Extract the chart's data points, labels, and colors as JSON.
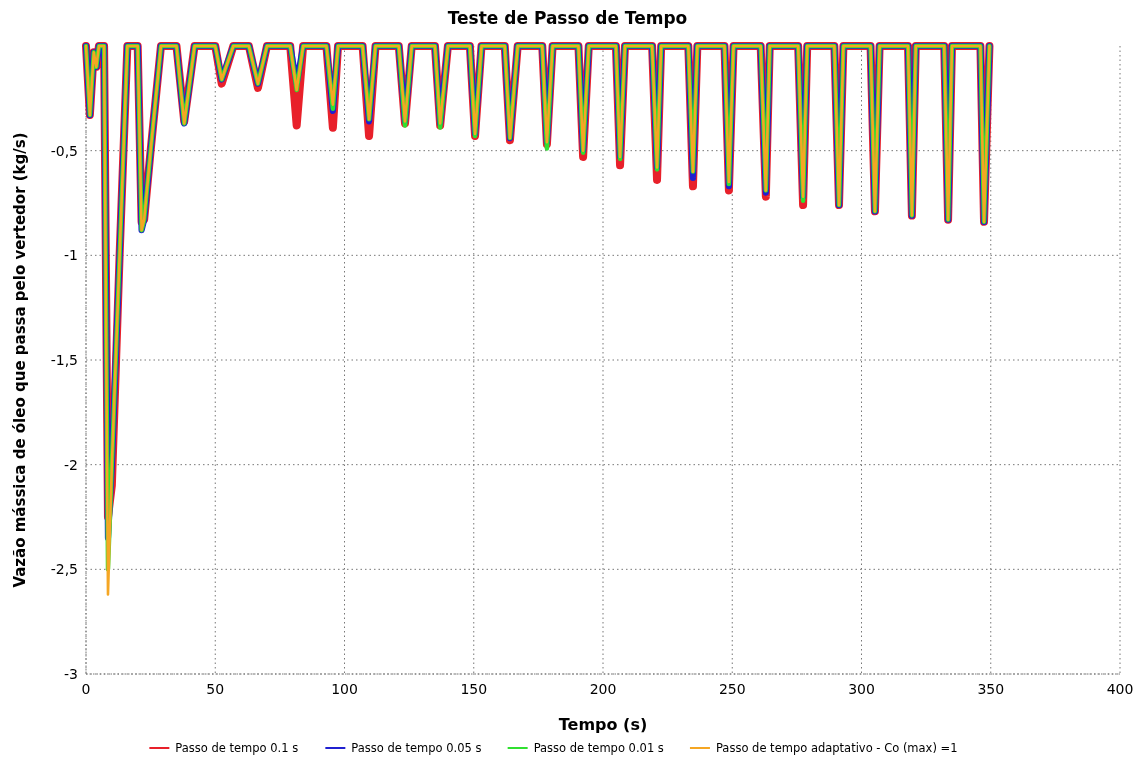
{
  "chart_data": {
    "type": "line",
    "title": "Teste de Passo de Tempo",
    "xlabel": "Tempo (s)",
    "ylabel": "Vazão mássica de óleo que passa pelo vertedor (kg/s)",
    "x": [
      0,
      1.5,
      3,
      4,
      5,
      7,
      8.5,
      10,
      13,
      16,
      20,
      21.5,
      22.5,
      25,
      29,
      35,
      38,
      42,
      50,
      52.5,
      57,
      63,
      66.5,
      70,
      79,
      81.5,
      84,
      93,
      95.5,
      97.5,
      107,
      109.5,
      112,
      121,
      123.4,
      126,
      135,
      137,
      140,
      148.5,
      150.5,
      153,
      162,
      164,
      167,
      176.5,
      178.3,
      180.5,
      190.5,
      192.3,
      194.5,
      205,
      206.6,
      208.5,
      219,
      220.9,
      222.5,
      233,
      234.8,
      236.5,
      247,
      248.7,
      250.5,
      261,
      263,
      264.5,
      275.5,
      277.4,
      279,
      289.5,
      291.3,
      293,
      303.5,
      305.2,
      307,
      318,
      319.5,
      321,
      332,
      333.5,
      335,
      346,
      347.4,
      349.5
    ],
    "series": [
      {
        "name": "Passo de tempo 0.1 s",
        "color": "#e8202a",
        "values": [
          0,
          -0.33,
          -0.03,
          -0.1,
          0,
          0,
          -2.25,
          -2.1,
          -1.0,
          0,
          0,
          -0.84,
          -0.83,
          -0.5,
          0,
          0,
          -0.36,
          0,
          0,
          -0.18,
          0,
          0,
          -0.2,
          0,
          0,
          -0.38,
          0,
          0,
          -0.39,
          0,
          0,
          -0.43,
          0,
          0,
          -0.37,
          0,
          0,
          -0.38,
          0,
          0,
          -0.43,
          0,
          0,
          -0.45,
          0,
          0,
          -0.47,
          0,
          0,
          -0.53,
          0,
          0,
          -0.57,
          0,
          0,
          -0.64,
          0,
          0,
          -0.67,
          0,
          0,
          -0.69,
          0,
          0,
          -0.72,
          0,
          0,
          -0.76,
          0,
          0,
          -0.76,
          0,
          0,
          -0.79,
          0,
          0,
          -0.81,
          0,
          0,
          -0.83,
          0,
          0,
          -0.84,
          0
        ]
      },
      {
        "name": "Passo de tempo 0.05 s",
        "color": "#2020d0",
        "values": [
          0,
          -0.33,
          -0.03,
          -0.1,
          0,
          0,
          -2.35,
          -2.0,
          -1.0,
          0,
          0,
          -0.88,
          -0.83,
          -0.5,
          0,
          0,
          -0.37,
          0,
          0,
          -0.16,
          0,
          0,
          -0.18,
          0,
          0,
          -0.18,
          0,
          0,
          -0.31,
          0,
          0,
          -0.36,
          0,
          0,
          -0.36,
          0,
          0,
          -0.37,
          0,
          0,
          -0.42,
          0,
          0,
          -0.44,
          0,
          0,
          -0.46,
          0,
          0,
          -0.5,
          0,
          0,
          -0.53,
          0,
          0,
          -0.58,
          0,
          0,
          -0.63,
          0,
          0,
          -0.67,
          0,
          0,
          -0.7,
          0,
          0,
          -0.72,
          0,
          0,
          -0.76,
          0,
          0,
          -0.79,
          0,
          0,
          -0.81,
          0,
          0,
          -0.83,
          0,
          0,
          -0.84,
          0
        ]
      },
      {
        "name": "Passo de tempo 0.01 s",
        "color": "#30e030",
        "values": [
          0,
          -0.33,
          -0.03,
          -0.1,
          0,
          0,
          -2.5,
          -2.0,
          -1.0,
          0,
          0,
          -0.88,
          -0.83,
          -0.5,
          0,
          0,
          -0.37,
          0,
          0,
          -0.16,
          0,
          0,
          -0.18,
          0,
          0,
          -0.21,
          0,
          0,
          -0.3,
          0,
          0,
          -0.35,
          0,
          0,
          -0.38,
          0,
          0,
          -0.39,
          0,
          0,
          -0.43,
          0,
          0,
          -0.44,
          0,
          0,
          -0.49,
          0,
          0,
          -0.51,
          0,
          0,
          -0.54,
          0,
          0,
          -0.59,
          0,
          0,
          -0.6,
          0,
          0,
          -0.66,
          0,
          0,
          -0.69,
          0,
          0,
          -0.74,
          0,
          0,
          -0.76,
          0,
          0,
          -0.79,
          0,
          0,
          -0.81,
          0,
          0,
          -0.83,
          0,
          0,
          -0.84,
          0
        ]
      },
      {
        "name": "Passo de tempo adaptativo - Co (max) =1",
        "color": "#f5a623",
        "values": [
          0,
          -0.33,
          -0.03,
          -0.1,
          0,
          0,
          -2.62,
          -2.0,
          -1.0,
          0,
          0,
          -0.88,
          -0.83,
          -0.5,
          0,
          0,
          -0.37,
          0,
          0,
          -0.16,
          0,
          0,
          -0.18,
          0,
          0,
          -0.21,
          0,
          0,
          -0.28,
          0,
          0,
          -0.35,
          0,
          0,
          -0.36,
          0,
          0,
          -0.37,
          0,
          0,
          -0.42,
          0,
          0,
          -0.44,
          0,
          0,
          -0.46,
          0,
          0,
          -0.5,
          0,
          0,
          -0.53,
          0,
          0,
          -0.58,
          0,
          0,
          -0.6,
          0,
          0,
          -0.65,
          0,
          0,
          -0.69,
          0,
          0,
          -0.72,
          0,
          0,
          -0.76,
          0,
          0,
          -0.79,
          0,
          0,
          -0.81,
          0,
          0,
          -0.83,
          0,
          0,
          -0.84,
          0
        ]
      }
    ],
    "xlim": [
      0,
      400
    ],
    "xticks": [
      0,
      50,
      100,
      150,
      200,
      250,
      300,
      350,
      400
    ],
    "ylim": [
      -3,
      0
    ],
    "yticks": [
      -3,
      {
        "value": -2.5,
        "label": "-2,5"
      },
      -2,
      {
        "value": -1.5,
        "label": "-1,5"
      },
      -1,
      {
        "value": -0.5,
        "label": "-0,5"
      }
    ],
    "grid": true,
    "legend": "bottom",
    "line_style": "solid",
    "marker": "none"
  }
}
